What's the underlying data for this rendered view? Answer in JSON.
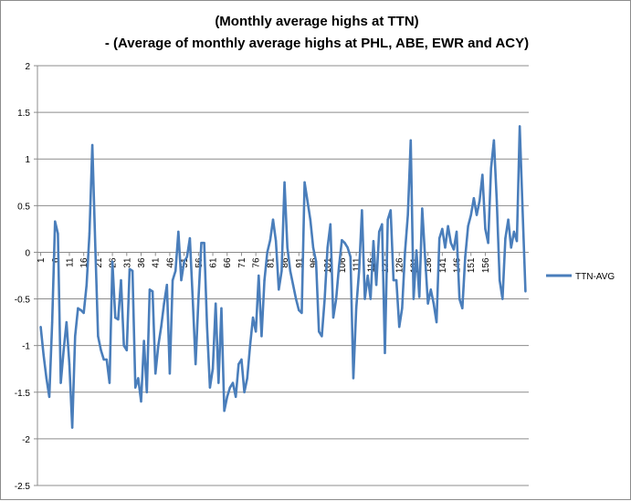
{
  "chart_data": {
    "type": "line",
    "title": "(Monthly average highs at TTN)",
    "subtitle": "- (Average of monthly average highs at PHL, ABE, EWR and ACY)",
    "ylim": [
      -2.5,
      2
    ],
    "yticks": [
      "2",
      "1.5",
      "1",
      "0.5",
      "0",
      "-0.5",
      "-1",
      "-1.5",
      "-2",
      "-2.5"
    ],
    "xtick_labels": [
      "1",
      "6",
      "11",
      "16",
      "21",
      "26",
      "31",
      "36",
      "41",
      "46",
      "51",
      "56",
      "61",
      "66",
      "71",
      "76",
      "81",
      "86",
      "91",
      "96",
      "101",
      "106",
      "111",
      "116",
      "121",
      "126",
      "131",
      "136",
      "141",
      "146",
      "151",
      "156"
    ],
    "grid": "horizontal",
    "legend_position": "right",
    "series": [
      {
        "name": "TTN-AVG",
        "color": "#4a7ebb",
        "values": [
          -0.8,
          -1.1,
          -1.35,
          -1.55,
          -0.75,
          0.33,
          0.2,
          -1.4,
          -1.05,
          -0.75,
          -1.2,
          -1.88,
          -0.9,
          -0.6,
          -0.62,
          -0.65,
          -0.35,
          0.2,
          1.15,
          0.1,
          -0.9,
          -1.05,
          -1.15,
          -1.15,
          -1.4,
          -0.1,
          -0.7,
          -0.72,
          -0.3,
          -1.0,
          -1.05,
          -0.18,
          -0.2,
          -1.45,
          -1.35,
          -1.6,
          -0.95,
          -1.5,
          -0.4,
          -0.42,
          -1.3,
          -1.0,
          -0.8,
          -0.55,
          -0.35,
          -1.3,
          -0.3,
          -0.2,
          0.22,
          -0.3,
          -0.1,
          -0.05,
          0.15,
          -0.5,
          -1.2,
          -0.5,
          0.1,
          0.1,
          -0.8,
          -1.45,
          -1.25,
          -0.55,
          -1.4,
          -0.6,
          -1.7,
          -1.55,
          -1.45,
          -1.4,
          -1.55,
          -1.2,
          -1.15,
          -1.5,
          -1.35,
          -1.0,
          -0.7,
          -0.85,
          -0.25,
          -0.9,
          -0.3,
          0.0,
          0.13,
          0.35,
          0.12,
          -0.4,
          -0.2,
          0.75,
          0.05,
          -0.2,
          -0.35,
          -0.5,
          -0.62,
          -0.65,
          0.75,
          0.55,
          0.35,
          0.05,
          -0.1,
          -0.85,
          -0.9,
          -0.5,
          0.05,
          0.3,
          -0.7,
          -0.5,
          -0.15,
          0.13,
          0.1,
          0.05,
          -0.05,
          -1.35,
          -0.6,
          -0.2,
          0.45,
          -0.5,
          -0.25,
          -0.5,
          0.12,
          -0.35,
          0.22,
          0.3,
          -1.08,
          0.35,
          0.45,
          -0.3,
          -0.3,
          -0.8,
          -0.6,
          0.0,
          0.4,
          1.2,
          -0.5,
          0.02,
          -0.48,
          0.47,
          -0.05,
          -0.55,
          -0.4,
          -0.55,
          -0.75,
          0.15,
          0.25,
          0.05,
          0.28,
          0.1,
          0.03,
          0.22,
          -0.5,
          -0.6,
          -0.05,
          0.28,
          0.4,
          0.58,
          0.4,
          0.55,
          0.83,
          0.25,
          0.1,
          0.9,
          1.2,
          0.55,
          -0.3,
          -0.5,
          0.15,
          0.35,
          0.05,
          0.22,
          0.12,
          1.35,
          0.45,
          -0.42
        ]
      }
    ]
  }
}
